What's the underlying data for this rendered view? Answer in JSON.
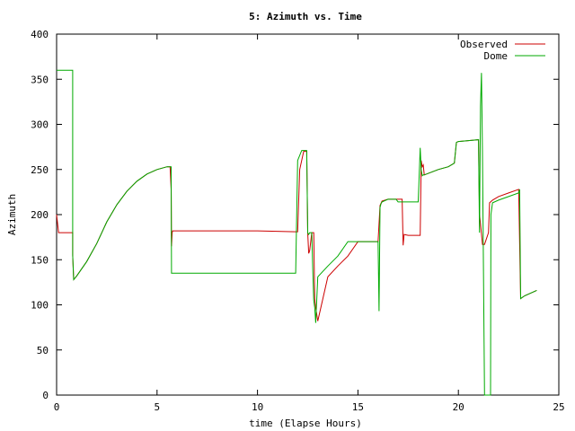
{
  "chart_data": {
    "type": "line",
    "title": "5: Azimuth vs. Time",
    "xlabel": "time (Elapse Hours)",
    "ylabel": "Azimuth",
    "xlim": [
      0,
      25
    ],
    "ylim": [
      0,
      400
    ],
    "xticks": [
      "0",
      "5",
      "10",
      "15",
      "20",
      "25"
    ],
    "yticks": [
      "0",
      "50",
      "100",
      "150",
      "200",
      "250",
      "300",
      "350",
      "400"
    ],
    "grid": false,
    "legend": "top-right",
    "series": [
      {
        "name": "Observed",
        "color": "#cc0000",
        "x": [
          0,
          0.1,
          0.8,
          0.8,
          0.85,
          1.0,
          1.5,
          2.0,
          2.5,
          3.0,
          3.5,
          4.0,
          4.5,
          5.0,
          5.5,
          5.65,
          5.7,
          5.72,
          5.75,
          5.78,
          5.8,
          5.9,
          10.0,
          11.9,
          12.0,
          12.1,
          12.3,
          12.45,
          12.5,
          12.55,
          12.6,
          12.7,
          12.75,
          12.8,
          12.85,
          12.9,
          13.0,
          13.5,
          14.0,
          14.5,
          15.0,
          15.5,
          16.0,
          16.1,
          16.2,
          16.5,
          16.9,
          17.2,
          17.25,
          17.3,
          17.5,
          18.0,
          18.1,
          18.15,
          18.2,
          18.25,
          18.3,
          19.0,
          19.5,
          19.8,
          19.9,
          20.0,
          20.5,
          21.0,
          21.05,
          21.1,
          21.2,
          21.3,
          21.5,
          21.55,
          21.6,
          21.7,
          22.0,
          22.5,
          23.0,
          23.1,
          23.3,
          23.9
        ],
        "y": [
          200,
          180,
          180,
          155,
          128,
          132,
          148,
          168,
          192,
          211,
          226,
          237,
          245,
          250,
          253,
          253,
          228,
          165,
          180,
          182,
          182,
          182,
          182,
          181,
          181,
          250,
          270,
          270,
          180,
          157,
          160,
          180,
          180,
          180,
          107,
          97,
          82,
          131,
          143,
          154,
          170,
          170,
          170,
          210,
          215,
          217,
          217,
          217,
          166,
          178,
          177,
          177,
          177,
          260,
          253,
          255,
          244,
          250,
          253,
          257,
          280,
          281,
          282,
          283,
          200,
          190,
          167,
          167,
          180,
          213,
          214,
          216,
          220,
          224,
          228,
          107,
          110,
          116
        ]
      },
      {
        "name": "Dome",
        "color": "#00aa00",
        "x": [
          0,
          0.8,
          0.8,
          0.85,
          1.0,
          1.5,
          2.0,
          2.5,
          3.0,
          3.5,
          4.0,
          4.5,
          5.0,
          5.5,
          5.7,
          5.72,
          11.9,
          12.0,
          12.2,
          12.45,
          12.5,
          12.55,
          12.6,
          12.7,
          12.75,
          12.8,
          12.85,
          12.9,
          13.0,
          13.5,
          14.0,
          14.5,
          15.0,
          15.5,
          16.0,
          16.05,
          16.1,
          16.15,
          16.2,
          16.5,
          16.9,
          17.0,
          17.5,
          18.0,
          18.1,
          18.15,
          18.2,
          18.25,
          18.3,
          19.0,
          19.5,
          19.8,
          19.9,
          20.0,
          20.5,
          21.0,
          21.05,
          21.1,
          21.15,
          21.2,
          21.3,
          21.35,
          21.6,
          21.62,
          21.7,
          22.0,
          22.5,
          23.0,
          23.05,
          23.1,
          23.3,
          23.9
        ],
        "y": [
          360,
          360,
          155,
          128,
          132,
          148,
          168,
          192,
          211,
          226,
          237,
          245,
          250,
          253,
          253,
          135,
          135,
          260,
          271,
          271,
          180,
          178,
          180,
          180,
          140,
          105,
          97,
          80,
          131,
          143,
          154,
          170,
          170,
          170,
          170,
          93,
          208,
          212,
          214,
          217,
          217,
          214,
          214,
          214,
          274,
          250,
          243,
          244,
          244,
          250,
          253,
          257,
          280,
          281,
          282,
          283,
          180,
          320,
          357,
          270,
          0,
          0,
          0,
          200,
          213,
          216,
          220,
          224,
          228,
          107,
          110,
          116
        ]
      }
    ]
  }
}
